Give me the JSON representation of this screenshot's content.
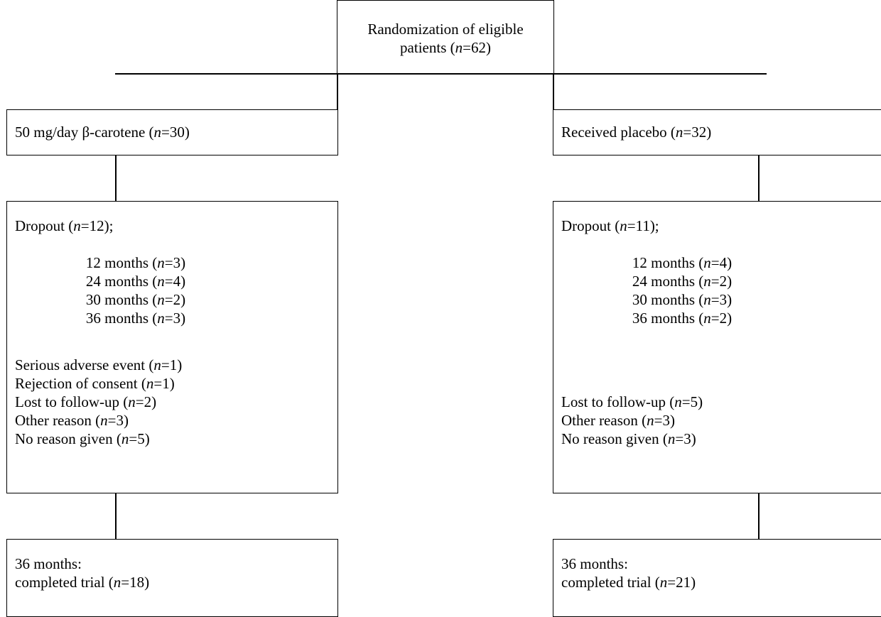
{
  "top": {
    "line1": "Randomization of eligible",
    "line2_pre": "patients (",
    "line2_n": "n",
    "line2_post": "=62)"
  },
  "left": {
    "arm": {
      "pre": "50 mg/day β-carotene (",
      "n": "n",
      "post": "=30)"
    },
    "dropout": {
      "head": {
        "pre": "Dropout (",
        "n": "n",
        "post": "=12);"
      },
      "months": [
        {
          "pre": "12 months (",
          "n": "n",
          "post": "=3)"
        },
        {
          "pre": "24 months (",
          "n": "n",
          "post": "=4)"
        },
        {
          "pre": "30 months (",
          "n": "n",
          "post": "=2)"
        },
        {
          "pre": "36 months (",
          "n": "n",
          "post": "=3)"
        }
      ],
      "reasons": [
        {
          "pre": "Serious adverse event (",
          "n": "n",
          "post": "=1)"
        },
        {
          "pre": "Rejection of consent (",
          "n": "n",
          "post": "=1)"
        },
        {
          "pre": "Lost to follow-up (",
          "n": "n",
          "post": "=2)"
        },
        {
          "pre": "Other reason (",
          "n": "n",
          "post": "=3)"
        },
        {
          "pre": "No reason given (",
          "n": "n",
          "post": "=5)"
        }
      ]
    },
    "final": {
      "line1": "36 months:",
      "pre": "completed trial (",
      "n": "n",
      "post": "=18)"
    }
  },
  "right": {
    "arm": {
      "pre": "Received placebo (",
      "n": "n",
      "post": "=32)"
    },
    "dropout": {
      "head": {
        "pre": "Dropout (",
        "n": "n",
        "post": "=11);"
      },
      "months": [
        {
          "pre": "12 months (",
          "n": "n",
          "post": "=4)"
        },
        {
          "pre": "24 months (",
          "n": "n",
          "post": "=2)"
        },
        {
          "pre": "30 months (",
          "n": "n",
          "post": "=3)"
        },
        {
          "pre": "36 months (",
          "n": "n",
          "post": "=2)"
        }
      ],
      "reasons": [
        {
          "pre": "Lost to follow-up (",
          "n": "n",
          "post": "=5)"
        },
        {
          "pre": "Other reason (",
          "n": "n",
          "post": "=3)"
        },
        {
          "pre": "No reason given (",
          "n": "n",
          "post": "=3)"
        }
      ]
    },
    "final": {
      "line1": "36 months:",
      "pre": "completed trial (",
      "n": "n",
      "post": "=21)"
    }
  }
}
